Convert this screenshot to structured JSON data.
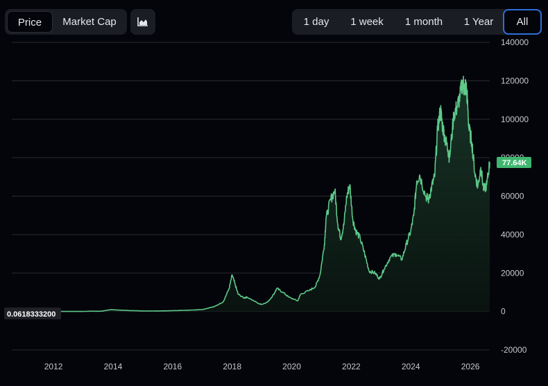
{
  "toolbar": {
    "metric_tabs": [
      {
        "label": "Price",
        "active": true
      },
      {
        "label": "Market Cap",
        "active": false
      }
    ],
    "chart_type_icon": "area-chart-icon",
    "range_tabs": [
      {
        "label": "1 day",
        "active": false
      },
      {
        "label": "1 week",
        "active": false
      },
      {
        "label": "1 month",
        "active": false
      },
      {
        "label": "1 Year",
        "active": false
      },
      {
        "label": "All",
        "active": true
      }
    ]
  },
  "colors": {
    "background": "#04050a",
    "line": "#5ec98a",
    "fill_top": "#1a3a2a",
    "grid": "#2a2c33",
    "active_range_border": "#2f6fdb",
    "price_tag": "#3fb66f"
  },
  "chart_data": {
    "type": "area",
    "x_ticks": [
      "2012",
      "2014",
      "2016",
      "2018",
      "2020",
      "2022",
      "2024",
      "2026"
    ],
    "y_ticks": [
      "140000",
      "120000",
      "100000",
      "80000",
      "60000",
      "40000",
      "20000",
      "0",
      "-20000"
    ],
    "ylim": [
      -20000,
      140000
    ],
    "xlim": [
      2010.6,
      2026.65
    ],
    "grid": true,
    "min_label": "0.0618333200",
    "current_label": "77.64K",
    "series": [
      {
        "x": [
          2010.6,
          2011.0,
          2011.45,
          2011.9,
          2012.5,
          2013.0,
          2013.3,
          2013.6,
          2013.9,
          2014.1,
          2014.5,
          2015.0,
          2015.5,
          2016.0,
          2016.5,
          2017.0,
          2017.4,
          2017.7,
          2017.9,
          2018.0,
          2018.1,
          2018.2,
          2018.4,
          2018.5,
          2018.9,
          2019.0,
          2019.2,
          2019.4,
          2019.5,
          2019.7,
          2019.9,
          2020.2,
          2020.3,
          2020.6,
          2020.8,
          2020.95,
          2021.1,
          2021.15,
          2021.3,
          2021.45,
          2021.55,
          2021.65,
          2021.75,
          2021.85,
          2021.95,
          2022.05,
          2022.15,
          2022.3,
          2022.45,
          2022.6,
          2022.8,
          2022.95,
          2023.1,
          2023.3,
          2023.5,
          2023.7,
          2023.85,
          2024.0,
          2024.1,
          2024.2,
          2024.3,
          2024.5,
          2024.6,
          2024.7,
          2024.8,
          2024.9,
          2025.0,
          2025.05,
          2025.15,
          2025.25,
          2025.3,
          2025.45,
          2025.55,
          2025.65,
          2025.75,
          2025.8,
          2025.85,
          2025.9,
          2025.95,
          2026.05,
          2026.15,
          2026.25,
          2026.35,
          2026.45,
          2026.55,
          2026.65
        ],
        "values": [
          0.06,
          1,
          30,
          3,
          6,
          15,
          150,
          100,
          900,
          800,
          500,
          250,
          250,
          400,
          650,
          1000,
          2500,
          5000,
          12000,
          19000,
          14000,
          9000,
          7000,
          7500,
          4000,
          3700,
          5000,
          9000,
          12000,
          10000,
          7500,
          5500,
          9000,
          11000,
          13000,
          19000,
          35000,
          48000,
          58000,
          63000,
          45000,
          38000,
          45000,
          60000,
          66000,
          48000,
          42000,
          38000,
          30000,
          21000,
          20000,
          17000,
          22000,
          28000,
          30000,
          27000,
          35000,
          42000,
          50000,
          68000,
          71000,
          60000,
          58000,
          65000,
          70000,
          95000,
          105000,
          98000,
          90000,
          84000,
          80000,
          103000,
          106000,
          112000,
          120000,
          115000,
          118000,
          110000,
          95000,
          88000,
          72000,
          65000,
          75000,
          63000,
          66000,
          77640
        ]
      }
    ]
  }
}
